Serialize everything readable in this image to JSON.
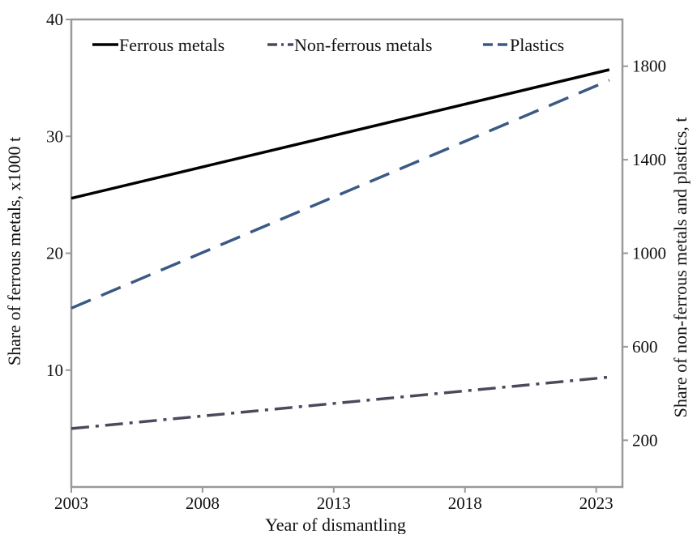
{
  "chart_data": {
    "type": "line",
    "xlabel": "Year of dismantling",
    "ylabel_left": "Share of ferrous metals, x1000 t",
    "ylabel_right": "Share of non-ferrous metals and plastics, t",
    "x_ticks": [
      "2003",
      "2008",
      "2013",
      "2018",
      "2023"
    ],
    "xlim": [
      2003,
      2024
    ],
    "y_left_ticks": [
      "10",
      "20",
      "30",
      "40"
    ],
    "y_left_lim": [
      0,
      40
    ],
    "y_right_ticks": [
      "200",
      "600",
      "1000",
      "1400",
      "1800"
    ],
    "y_right_lim": [
      0,
      2000
    ],
    "grid": false,
    "legend_position": "top",
    "series": [
      {
        "name": "Ferrous metals",
        "axis": "left",
        "color": "#000000",
        "dash": "solid",
        "x": [
          2003,
          2023.5
        ],
        "y": [
          24.7,
          35.7
        ]
      },
      {
        "name": "Non-ferrous metals",
        "axis": "right",
        "color": "#4a4a5c",
        "dash": "dash-dot",
        "x": [
          2003,
          2023.5
        ],
        "y": [
          250,
          470
        ]
      },
      {
        "name": "Plastics",
        "axis": "right",
        "color": "#3a5a85",
        "dash": "dashed",
        "x": [
          2003,
          2023.5
        ],
        "y": [
          765,
          1740
        ]
      }
    ]
  }
}
